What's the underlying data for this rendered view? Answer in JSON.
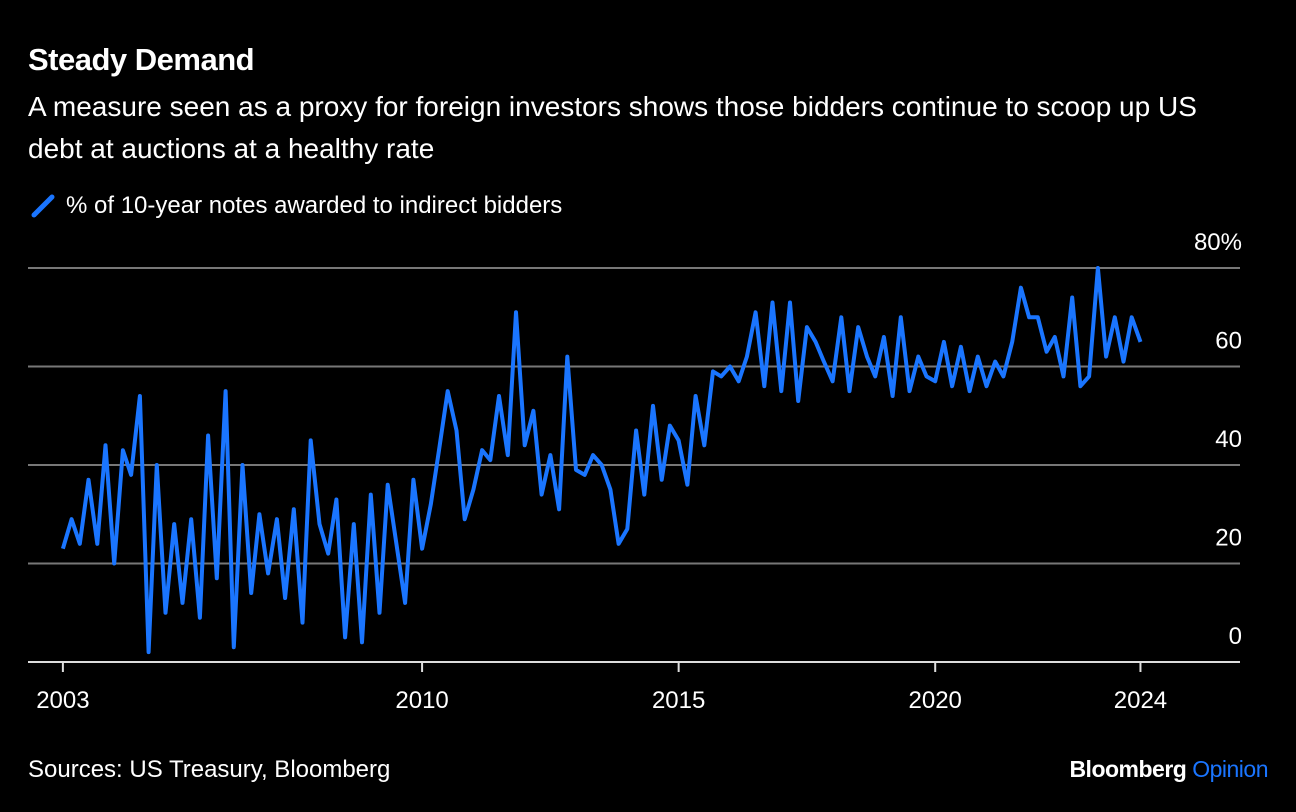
{
  "chart_data": {
    "type": "line",
    "title": "Steady Demand",
    "subtitle": "A measure seen as a proxy for foreign investors shows those bidders continue to scoop up US debt at auctions at a healthy rate",
    "source": "Sources: US Treasury, Bloomberg",
    "credit": {
      "name": "Bloomberg",
      "product": "Opinion"
    },
    "x": [
      2003,
      2003.17,
      2003.33,
      2003.5,
      2003.67,
      2003.83,
      2004,
      2004.17,
      2004.33,
      2004.5,
      2004.67,
      2004.83,
      2005,
      2005.17,
      2005.33,
      2005.5,
      2005.67,
      2005.83,
      2006,
      2006.17,
      2006.33,
      2006.5,
      2006.67,
      2006.83,
      2007,
      2007.17,
      2007.33,
      2007.5,
      2007.67,
      2007.83,
      2008,
      2008.17,
      2008.33,
      2008.5,
      2008.67,
      2008.83,
      2009,
      2009.17,
      2009.33,
      2009.5,
      2009.67,
      2009.83,
      2010,
      2010.17,
      2010.33,
      2010.5,
      2010.67,
      2010.83,
      2011,
      2011.17,
      2011.33,
      2011.5,
      2011.67,
      2011.83,
      2012,
      2012.17,
      2012.33,
      2012.5,
      2012.67,
      2012.83,
      2013,
      2013.17,
      2013.33,
      2013.5,
      2013.67,
      2013.83,
      2014,
      2014.17,
      2014.33,
      2014.5,
      2014.67,
      2014.83,
      2015,
      2015.17,
      2015.33,
      2015.5,
      2015.67,
      2015.83,
      2016,
      2016.17,
      2016.33,
      2016.5,
      2016.67,
      2016.83,
      2017,
      2017.17,
      2017.33,
      2017.5,
      2017.67,
      2017.83,
      2018,
      2018.17,
      2018.33,
      2018.5,
      2018.67,
      2018.83,
      2019,
      2019.17,
      2019.33,
      2019.5,
      2019.67,
      2019.83,
      2020,
      2020.17,
      2020.33,
      2020.5,
      2020.67,
      2020.83,
      2021,
      2021.17,
      2021.33,
      2021.5,
      2021.67,
      2021.83,
      2022,
      2022.17,
      2022.33,
      2022.5,
      2022.67,
      2022.83,
      2023,
      2023.17,
      2023.33,
      2023.5,
      2023.67,
      2023.83,
      2024
    ],
    "series": [
      {
        "name": "% of 10-year notes awarded to indirect bidders",
        "color": "#1a75ff",
        "values": [
          23,
          29,
          24,
          37,
          24,
          44,
          20,
          43,
          38,
          54,
          2,
          40,
          10,
          28,
          12,
          29,
          9,
          46,
          17,
          55,
          3,
          40,
          14,
          30,
          18,
          29,
          13,
          31,
          8,
          45,
          28,
          22,
          33,
          5,
          28,
          4,
          34,
          10,
          36,
          24,
          12,
          37,
          23,
          32,
          43,
          55,
          47,
          29,
          35,
          43,
          41,
          54,
          42,
          71,
          44,
          51,
          34,
          42,
          31,
          62,
          39,
          38,
          42,
          40,
          35,
          24,
          27,
          47,
          34,
          52,
          37,
          48,
          45,
          36,
          54,
          44,
          59,
          58,
          60,
          57,
          62,
          71,
          56,
          73,
          55,
          73,
          53,
          68,
          65,
          61,
          57,
          70,
          55,
          68,
          62,
          58,
          66,
          54,
          70,
          55,
          62,
          58,
          57,
          65,
          56,
          64,
          55,
          62,
          56,
          61,
          58,
          65,
          76,
          70,
          70,
          63,
          66,
          58,
          74,
          56,
          58,
          80,
          62,
          70,
          61,
          70,
          65
        ]
      }
    ],
    "xlim": [
      2002.32,
      2025.94
    ],
    "xticks": [
      2003,
      2010,
      2015,
      2020,
      2024
    ],
    "ylim": [
      0,
      80
    ],
    "yticks": [
      0,
      20,
      40,
      60,
      {
        "value": 80,
        "label": "80%"
      }
    ],
    "grid": true
  }
}
